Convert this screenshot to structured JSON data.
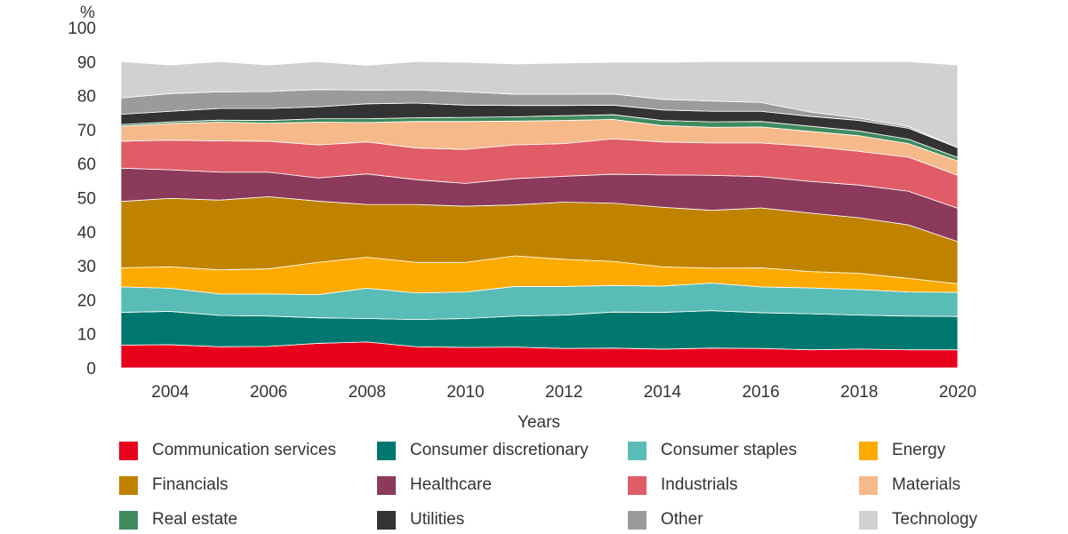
{
  "chart_data": {
    "type": "area",
    "stacked": true,
    "x": [
      2003,
      2004,
      2005,
      2006,
      2007,
      2008,
      2009,
      2010,
      2011,
      2012,
      2013,
      2014,
      2015,
      2016,
      2017,
      2018,
      2019,
      2020
    ],
    "x_ticks": [
      2004,
      2006,
      2008,
      2010,
      2012,
      2014,
      2016,
      2018,
      2020
    ],
    "y_ticks": [
      0,
      10,
      20,
      30,
      40,
      50,
      60,
      70,
      80,
      90,
      100
    ],
    "xlim": [
      2003,
      2020
    ],
    "ylim": [
      0,
      100
    ],
    "ylabel": "%",
    "xlabel": "Years",
    "title": "",
    "grid": false,
    "legend_position": "bottom",
    "series": [
      {
        "name": "Communication services",
        "color": "#e8001c",
        "values": [
          6.7,
          6.8,
          6.2,
          6.3,
          7.2,
          7.6,
          6.2,
          6.0,
          6.1,
          5.7,
          5.8,
          5.5,
          5.8,
          5.7,
          5.3,
          5.5,
          5.3,
          5.3
        ]
      },
      {
        "name": "Consumer discretionary",
        "color": "#00786f",
        "values": [
          9.6,
          9.8,
          9.2,
          8.9,
          7.5,
          6.9,
          8.0,
          8.5,
          9.1,
          9.8,
          10.6,
          10.8,
          11.0,
          10.5,
          10.6,
          10.0,
          9.9,
          9.8
        ]
      },
      {
        "name": "Consumer staples",
        "color": "#5abcb6",
        "values": [
          7.5,
          6.8,
          6.3,
          6.5,
          6.8,
          8.9,
          7.8,
          7.8,
          8.7,
          8.4,
          7.8,
          7.7,
          8.1,
          7.6,
          7.6,
          7.5,
          7.1,
          7.1
        ]
      },
      {
        "name": "Energy",
        "color": "#fdab00",
        "values": [
          5.6,
          6.3,
          7.1,
          7.4,
          9.5,
          9.1,
          9.0,
          8.7,
          9.0,
          8.0,
          7.1,
          5.7,
          4.4,
          5.6,
          4.8,
          4.8,
          4.0,
          2.5
        ]
      },
      {
        "name": "Financials",
        "color": "#c08300",
        "values": [
          19.5,
          20.1,
          20.5,
          21.2,
          18.0,
          15.5,
          17.0,
          16.5,
          15.0,
          16.8,
          17.1,
          17.5,
          17.0,
          17.6,
          17.2,
          16.3,
          15.7,
          12.4
        ]
      },
      {
        "name": "Healthcare",
        "color": "#8b3a5c",
        "values": [
          9.8,
          8.4,
          8.2,
          7.2,
          6.8,
          9.0,
          7.3,
          6.7,
          7.7,
          7.6,
          8.5,
          9.5,
          10.3,
          9.2,
          9.3,
          9.6,
          9.9,
          9.8
        ]
      },
      {
        "name": "Industrials",
        "color": "#e05c66",
        "values": [
          7.9,
          8.7,
          9.2,
          9.1,
          9.7,
          9.4,
          9.3,
          10.0,
          9.9,
          9.6,
          10.4,
          9.7,
          9.5,
          9.9,
          10.3,
          9.9,
          10.0,
          9.7
        ]
      },
      {
        "name": "Materials",
        "color": "#f6b98a",
        "values": [
          4.4,
          4.9,
          5.5,
          5.3,
          6.7,
          5.7,
          7.8,
          8.2,
          7.0,
          6.8,
          5.7,
          4.8,
          4.6,
          4.7,
          4.4,
          4.6,
          4.0,
          4.2
        ]
      },
      {
        "name": "Real estate",
        "color": "#3f8b5e",
        "values": [
          0.5,
          0.5,
          0.6,
          0.8,
          1.0,
          1.1,
          1.1,
          1.2,
          1.3,
          1.4,
          1.4,
          1.5,
          1.6,
          1.6,
          1.5,
          1.4,
          1.3,
          1.0
        ]
      },
      {
        "name": "Utilities",
        "color": "#333333",
        "values": [
          3.0,
          3.1,
          3.4,
          3.5,
          3.5,
          4.4,
          4.3,
          3.6,
          3.3,
          3.0,
          2.8,
          3.1,
          3.1,
          3.0,
          2.9,
          3.1,
          3.2,
          2.9
        ]
      },
      {
        "name": "Other",
        "color": "#9b9b9b",
        "values": [
          4.8,
          5.2,
          4.9,
          5.0,
          5.1,
          4.0,
          3.9,
          3.9,
          3.3,
          3.3,
          3.3,
          3.1,
          3.0,
          2.6,
          1.3,
          0.7,
          0.5,
          0.0
        ]
      },
      {
        "name": "Technology",
        "color": "#d1d1d1",
        "values": [
          10.7,
          8.4,
          8.9,
          7.8,
          8.2,
          7.3,
          8.3,
          8.7,
          8.9,
          9.2,
          9.3,
          10.9,
          11.6,
          12.0,
          14.8,
          16.6,
          19.1,
          24.3
        ]
      }
    ]
  }
}
